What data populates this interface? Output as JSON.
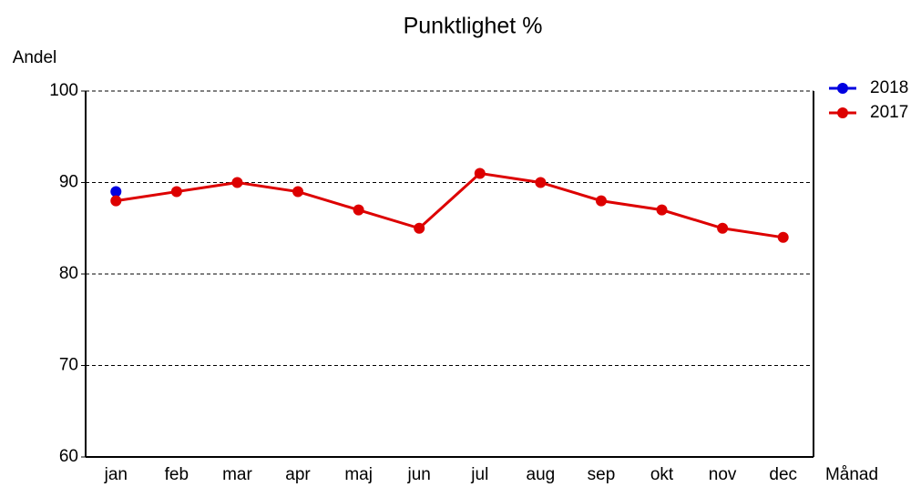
{
  "chart_data": {
    "type": "line",
    "title": "Punktlighet %",
    "y_label": "Andel",
    "x_label": "Månad",
    "categories": [
      "jan",
      "feb",
      "mar",
      "apr",
      "maj",
      "jun",
      "jul",
      "aug",
      "sep",
      "okt",
      "nov",
      "dec"
    ],
    "series": [
      {
        "name": "2018",
        "color": "#0000e0",
        "values": [
          89,
          null,
          null,
          null,
          null,
          null,
          null,
          null,
          null,
          null,
          null,
          null
        ]
      },
      {
        "name": "2017",
        "color": "#dd0000",
        "values": [
          88,
          89,
          90,
          89,
          87,
          85,
          91,
          90,
          88,
          87,
          85,
          84
        ]
      }
    ],
    "ylim": [
      60,
      100
    ],
    "yticks": [
      60,
      70,
      80,
      90,
      100
    ],
    "grid": true,
    "legend": "right"
  }
}
